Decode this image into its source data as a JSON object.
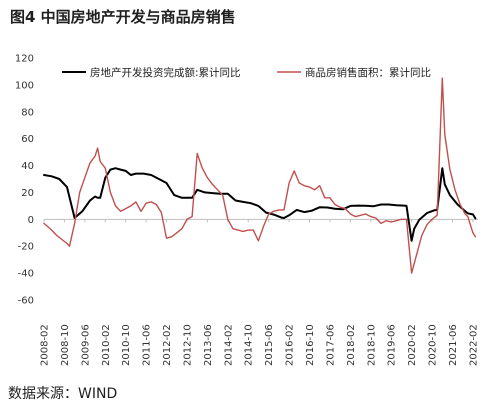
{
  "title": "图4  中国房地产开发与商品房销售",
  "source": "数据来源：WIND",
  "chart_data": {
    "type": "line",
    "ylim": [
      -60,
      120
    ],
    "yticks": [
      120,
      100,
      80,
      60,
      40,
      20,
      0,
      -20,
      -40,
      -60
    ],
    "xlim": [
      "2008-02",
      "2022-04"
    ],
    "xticks": [
      "2008-02",
      "2008-10",
      "2009-06",
      "2010-02",
      "2010-10",
      "2011-06",
      "2012-02",
      "2012-10",
      "2013-06",
      "2014-02",
      "2014-10",
      "2015-06",
      "2016-02",
      "2016-10",
      "2017-06",
      "2018-02",
      "2018-10",
      "2019-06",
      "2020-02",
      "2020-10",
      "2021-06",
      "2022-02"
    ],
    "grid": false,
    "legend": "top",
    "colors": {
      "investment": "#000000",
      "sales": "#c0504d"
    },
    "series": [
      {
        "name": "房地产开发投资完成额:累计同比",
        "color": "#000000",
        "points": [
          [
            "2008-02",
            33
          ],
          [
            "2008-05",
            32
          ],
          [
            "2008-08",
            30
          ],
          [
            "2008-11",
            24
          ],
          [
            "2009-02",
            1
          ],
          [
            "2009-05",
            6
          ],
          [
            "2009-08",
            14
          ],
          [
            "2009-10",
            17
          ],
          [
            "2009-11",
            16
          ],
          [
            "2009-12",
            16
          ],
          [
            "2010-02",
            31
          ],
          [
            "2010-04",
            37
          ],
          [
            "2010-06",
            38
          ],
          [
            "2010-08",
            37
          ],
          [
            "2010-10",
            36
          ],
          [
            "2010-12",
            33
          ],
          [
            "2011-02",
            34
          ],
          [
            "2011-05",
            34
          ],
          [
            "2011-08",
            33
          ],
          [
            "2011-11",
            30
          ],
          [
            "2012-02",
            27
          ],
          [
            "2012-05",
            18
          ],
          [
            "2012-08",
            16
          ],
          [
            "2012-11",
            16
          ],
          [
            "2012-12",
            16
          ],
          [
            "2013-02",
            22
          ],
          [
            "2013-05",
            20
          ],
          [
            "2013-08",
            19.5
          ],
          [
            "2013-11",
            19
          ],
          [
            "2014-02",
            19
          ],
          [
            "2014-05",
            14
          ],
          [
            "2014-08",
            13
          ],
          [
            "2014-11",
            12
          ],
          [
            "2015-02",
            10
          ],
          [
            "2015-05",
            5
          ],
          [
            "2015-08",
            3.5
          ],
          [
            "2015-11",
            1.3
          ],
          [
            "2015-12",
            1
          ],
          [
            "2016-02",
            3
          ],
          [
            "2016-05",
            7
          ],
          [
            "2016-08",
            5.4
          ],
          [
            "2016-11",
            6.5
          ],
          [
            "2017-02",
            9
          ],
          [
            "2017-05",
            8.8
          ],
          [
            "2017-08",
            7.9
          ],
          [
            "2017-11",
            7.5
          ],
          [
            "2018-02",
            10
          ],
          [
            "2018-05",
            10.2
          ],
          [
            "2018-08",
            10.1
          ],
          [
            "2018-11",
            9.7
          ],
          [
            "2019-02",
            11
          ],
          [
            "2019-05",
            11
          ],
          [
            "2019-08",
            10.5
          ],
          [
            "2019-11",
            10.2
          ],
          [
            "2019-12",
            10
          ],
          [
            "2020-02",
            -16
          ],
          [
            "2020-03",
            -7
          ],
          [
            "2020-05",
            -0.3
          ],
          [
            "2020-08",
            4.6
          ],
          [
            "2020-11",
            6.8
          ],
          [
            "2020-12",
            7
          ],
          [
            "2021-02",
            38
          ],
          [
            "2021-03",
            26
          ],
          [
            "2021-05",
            18
          ],
          [
            "2021-08",
            11
          ],
          [
            "2021-11",
            6
          ],
          [
            "2021-12",
            4.4
          ],
          [
            "2022-02",
            3.7
          ],
          [
            "2022-03",
            0.7
          ]
        ]
      },
      {
        "name": "商品房销售面积：累计同比",
        "color": "#c0504d",
        "points": [
          [
            "2008-02",
            -3
          ],
          [
            "2008-05",
            -8
          ],
          [
            "2008-07",
            -12
          ],
          [
            "2008-09",
            -15
          ],
          [
            "2008-11",
            -18
          ],
          [
            "2008-12",
            -20
          ],
          [
            "2009-02",
            -3
          ],
          [
            "2009-04",
            20
          ],
          [
            "2009-06",
            31
          ],
          [
            "2009-08",
            42
          ],
          [
            "2009-10",
            47
          ],
          [
            "2009-11",
            53
          ],
          [
            "2009-12",
            43
          ],
          [
            "2010-02",
            38
          ],
          [
            "2010-04",
            20
          ],
          [
            "2010-06",
            10
          ],
          [
            "2010-08",
            6
          ],
          [
            "2010-10",
            8
          ],
          [
            "2010-12",
            10
          ],
          [
            "2011-02",
            13
          ],
          [
            "2011-04",
            6
          ],
          [
            "2011-06",
            12
          ],
          [
            "2011-08",
            13
          ],
          [
            "2011-10",
            11
          ],
          [
            "2011-12",
            5
          ],
          [
            "2012-02",
            -14
          ],
          [
            "2012-04",
            -13
          ],
          [
            "2012-06",
            -10
          ],
          [
            "2012-08",
            -7
          ],
          [
            "2012-10",
            0
          ],
          [
            "2012-12",
            2
          ],
          [
            "2013-02",
            49
          ],
          [
            "2013-04",
            38
          ],
          [
            "2013-06",
            31
          ],
          [
            "2013-08",
            26
          ],
          [
            "2013-10",
            22
          ],
          [
            "2013-12",
            18
          ],
          [
            "2014-02",
            0
          ],
          [
            "2014-04",
            -7
          ],
          [
            "2014-06",
            -8
          ],
          [
            "2014-08",
            -9
          ],
          [
            "2014-10",
            -8
          ],
          [
            "2014-12",
            -8
          ],
          [
            "2015-02",
            -16
          ],
          [
            "2015-04",
            -5
          ],
          [
            "2015-06",
            4
          ],
          [
            "2015-08",
            6
          ],
          [
            "2015-10",
            7
          ],
          [
            "2015-12",
            7
          ],
          [
            "2016-02",
            27
          ],
          [
            "2016-04",
            36
          ],
          [
            "2016-06",
            27
          ],
          [
            "2016-08",
            25
          ],
          [
            "2016-10",
            24
          ],
          [
            "2016-12",
            22
          ],
          [
            "2017-02",
            25
          ],
          [
            "2017-04",
            16
          ],
          [
            "2017-06",
            16
          ],
          [
            "2017-08",
            11
          ],
          [
            "2017-10",
            9
          ],
          [
            "2017-12",
            8
          ],
          [
            "2018-02",
            4
          ],
          [
            "2018-04",
            2
          ],
          [
            "2018-06",
            3
          ],
          [
            "2018-08",
            4
          ],
          [
            "2018-10",
            2
          ],
          [
            "2018-12",
            1
          ],
          [
            "2019-02",
            -3
          ],
          [
            "2019-04",
            -1
          ],
          [
            "2019-06",
            -2
          ],
          [
            "2019-08",
            -1
          ],
          [
            "2019-10",
            0
          ],
          [
            "2019-12",
            0
          ],
          [
            "2020-02",
            -40
          ],
          [
            "2020-04",
            -26
          ],
          [
            "2020-06",
            -12
          ],
          [
            "2020-08",
            -4
          ],
          [
            "2020-10",
            0
          ],
          [
            "2020-12",
            3
          ],
          [
            "2021-02",
            105
          ],
          [
            "2021-03",
            63
          ],
          [
            "2021-05",
            37
          ],
          [
            "2021-07",
            22
          ],
          [
            "2021-09",
            11
          ],
          [
            "2021-11",
            4
          ],
          [
            "2021-12",
            2
          ],
          [
            "2022-02",
            -10
          ],
          [
            "2022-03",
            -13
          ]
        ]
      }
    ]
  }
}
